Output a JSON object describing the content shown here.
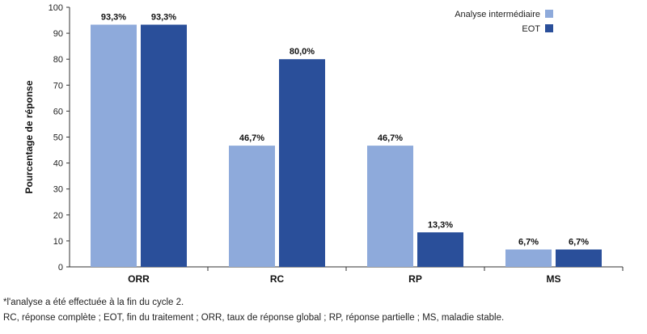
{
  "chart_data": {
    "type": "bar",
    "title": "",
    "xlabel": "",
    "ylabel": "Pourcentage de réponse",
    "ylim": [
      0,
      100
    ],
    "yticks": [
      0,
      10,
      20,
      30,
      40,
      50,
      60,
      70,
      80,
      90,
      100
    ],
    "categories": [
      "ORR",
      "RC",
      "RP",
      "MS"
    ],
    "series": [
      {
        "name": "Analyse intermédiaire",
        "color": "#8eaadb",
        "values": [
          93.3,
          46.7,
          46.7,
          6.7
        ],
        "labels": [
          "93,3%",
          "46,7%",
          "46,7%",
          "6,7%"
        ]
      },
      {
        "name": "EOT",
        "color": "#2a4f9a",
        "values": [
          93.3,
          80.0,
          13.3,
          6.7
        ],
        "labels": [
          "93,3%",
          "80,0%",
          "13,3%",
          "6,7%"
        ]
      }
    ],
    "legend_position": "top-right",
    "grid": false
  },
  "footnotes": {
    "line1": "*l'analyse a été effectuée à la fin du cycle 2.",
    "line2": "RC, réponse complète ; EOT, fin du traitement ; ORR, taux de réponse global ; RP, réponse partielle ; MS, maladie stable."
  }
}
